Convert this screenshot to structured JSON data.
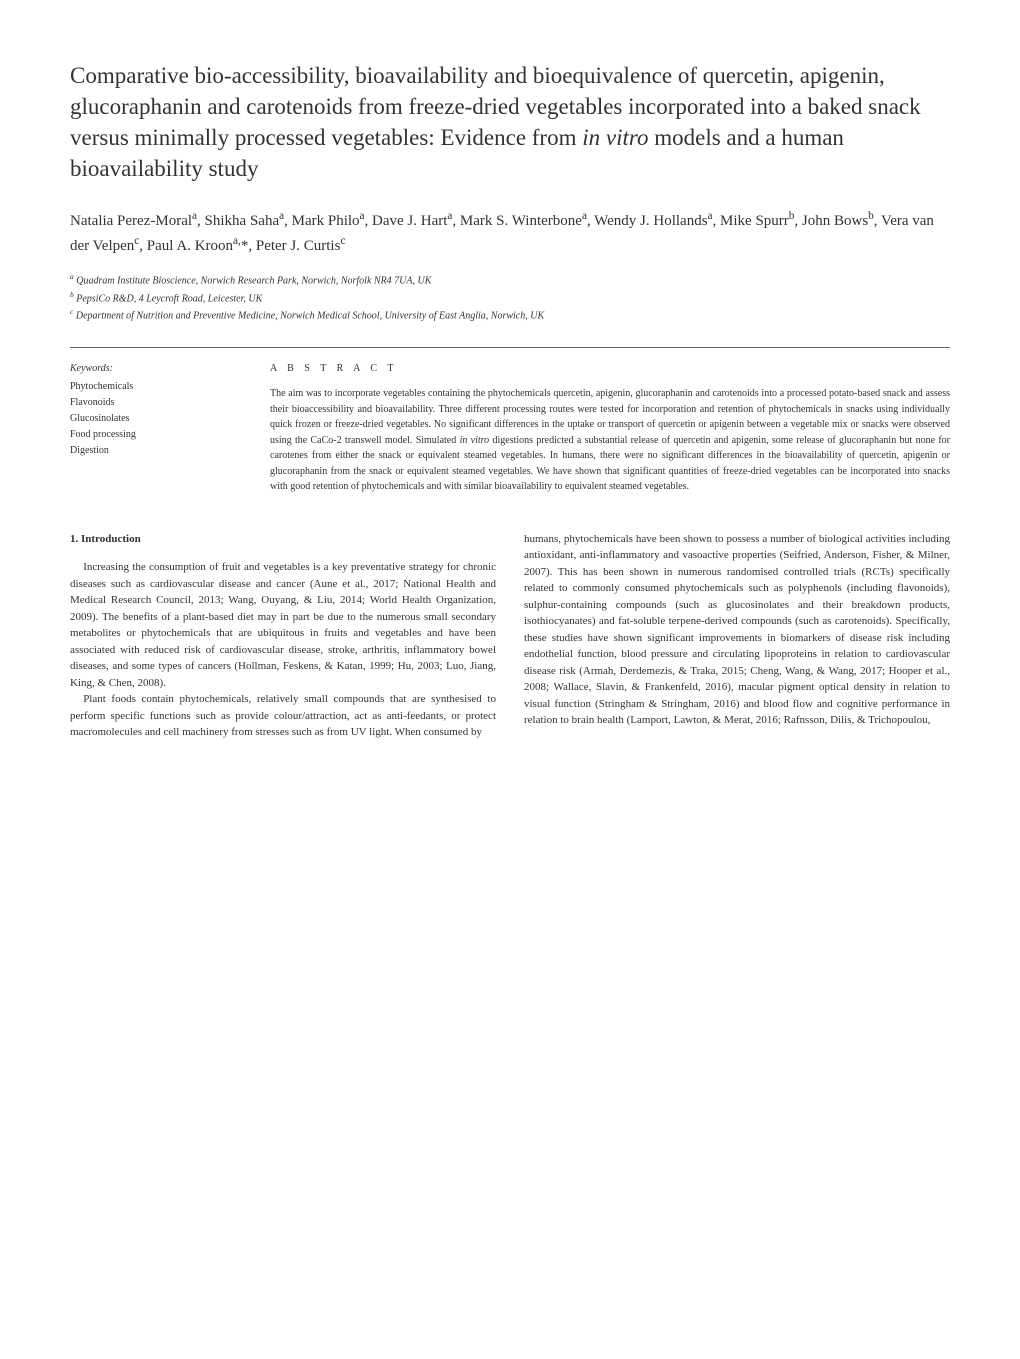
{
  "title": "Comparative bio-accessibility, bioavailability and bioequivalence of quercetin, apigenin, glucoraphanin and carotenoids from freeze-dried vegetables incorporated into a baked snack versus minimally processed vegetables: Evidence from in vitro models and a human bioavailability study",
  "authors_html": "Natalia Perez-Moral<sup>a</sup>, Shikha Saha<sup>a</sup>, Mark Philo<sup>a</sup>, Dave J. Hart<sup>a</sup>, Mark S. Winterbone<sup>a</sup>, Wendy J. Hollands<sup>a</sup>, Mike Spurr<sup>b</sup>, John Bows<sup>b</sup>, Vera van der Velpen<sup>c</sup>, Paul A. Kroon<sup>a,</sup>*, Peter J. Curtis<sup>c</sup>",
  "affiliations": {
    "a": "Quadram Institute Bioscience, Norwich Research Park, Norwich, Norfolk NR4 7UA, UK",
    "b": "PepsiCo R&D, 4 Leycroft Road, Leicester, UK",
    "c": "Department of Nutrition and Preventive Medicine, Norwich Medical School, University of East Anglia, Norwich, UK"
  },
  "keywords_heading": "Keywords:",
  "keywords": [
    "Phytochemicals",
    "Flavonoids",
    "Glucosinolates",
    "Food processing",
    "Digestion"
  ],
  "abstract_heading": "A B S T R A C T",
  "abstract_text": "The aim was to incorporate vegetables containing the phytochemicals quercetin, apigenin, glucoraphanin and carotenoids into a processed potato-based snack and assess their bioaccessibility and bioavailability. Three different processing routes were tested for incorporation and retention of phytochemicals in snacks using individually quick frozen or freeze-dried vegetables. No significant differences in the uptake or transport of quercetin or apigenin between a vegetable mix or snacks were observed using the CaCo-2 transwell model. Simulated in vitro digestions predicted a substantial release of quercetin and apigenin, some release of glucoraphanin but none for carotenes from either the snack or equivalent steamed vegetables. In humans, there were no significant differences in the bioavailability of quercetin, apigenin or glucoraphanin from the snack or equivalent steamed vegetables. We have shown that significant quantities of freeze-dried vegetables can be incorporated into snacks with good retention of phytochemicals and with similar bioavailability to equivalent steamed vegetables.",
  "section_heading": "1.  Introduction",
  "body_left_p1": "Increasing the consumption of fruit and vegetables is a key preventative strategy for chronic diseases such as cardiovascular disease and cancer (Aune et al., 2017; National Health and Medical Research Council, 2013; Wang, Ouyang, & Liu, 2014; World Health Organization, 2009). The benefits of a plant-based diet may in part be due to the numerous small secondary metabolites or phytochemicals that are ubiquitous in fruits and vegetables and have been associated with reduced risk of cardiovascular disease, stroke, arthritis, inflammatory bowel diseases, and some types of cancers (Hollman, Feskens, & Katan, 1999; Hu, 2003; Luo, Jiang, King, & Chen, 2008).",
  "body_left_p2": "Plant foods contain phytochemicals, relatively small compounds that are synthesised to perform specific functions such as provide colour/attraction, act as anti-feedants, or protect macromolecules and cell machinery from stresses such as from UV light. When consumed by",
  "body_right_p1": "humans, phytochemicals have been shown to possess a number of biological activities including antioxidant, anti-inflammatory and vasoactive properties (Seifried, Anderson, Fisher, & Milner, 2007). This has been shown in numerous randomised controlled trials (RCTs) specifically related to commonly consumed phytochemicals such as polyphenols (including flavonoids), sulphur-containing compounds (such as glucosinolates and their breakdown products, isothiocyanates) and fat-soluble terpene-derived compounds (such as carotenoids). Specifically, these studies have shown significant improvements in biomarkers of disease risk including endothelial function, blood pressure and circulating lipoproteins in relation to cardiovascular disease risk (Armah, Derdemezis, & Traka, 2015; Cheng, Wang, & Wang, 2017; Hooper et al., 2008; Wallace, Slavin, & Frankenfeld, 2016), macular pigment optical density in relation to visual function (Stringham & Stringham, 2016) and blood flow and cognitive performance in relation to brain health (Lamport, Lawton, & Merat, 2016; Rafnsson, Dilis, & Trichopoulou,"
}
